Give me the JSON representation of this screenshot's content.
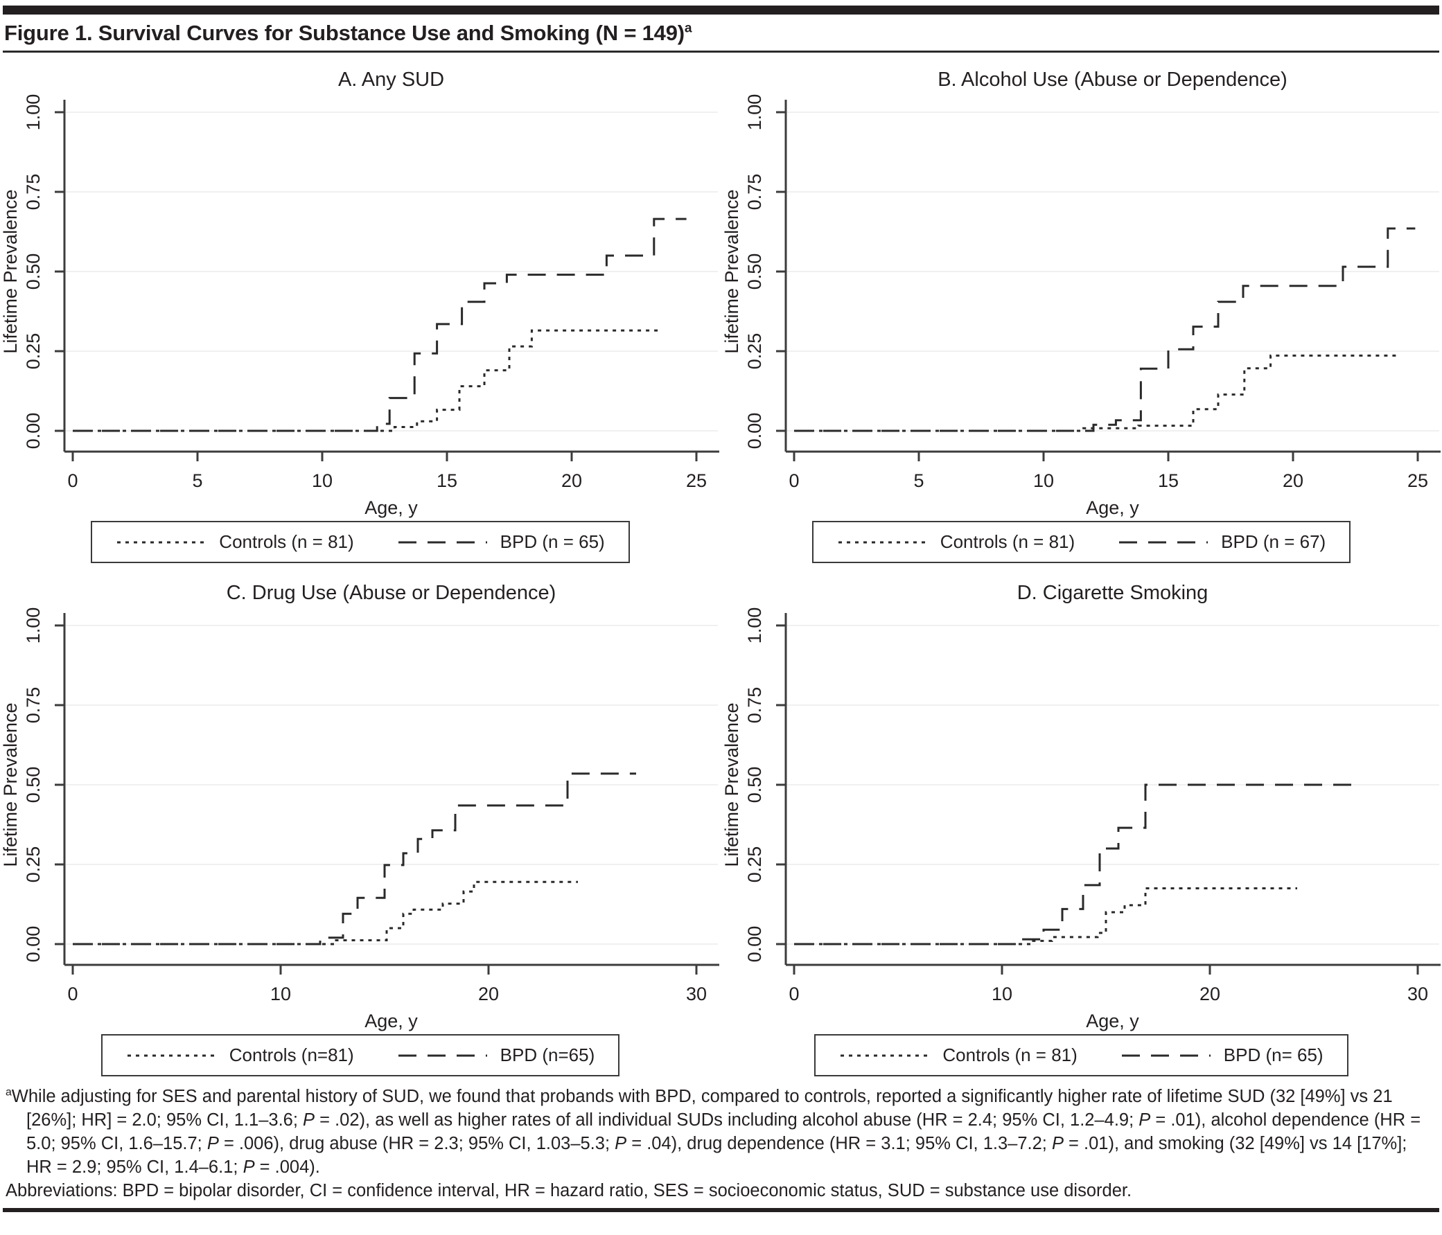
{
  "page": {
    "figure_title": "Figure 1. Survival Curves for Substance Use and Smoking (N = 149)",
    "footnote_marker": "a",
    "footnote_text": "While adjusting for SES and parental history of SUD, we found that probands with BPD, compared to controls, reported a significantly higher rate of lifetime SUD (32 [49%] vs 21 [26%]; HR] = 2.0; 95% CI, 1.1–3.6; P = .02), as well as higher rates of all individual SUDs including alcohol abuse (HR = 2.4; 95% CI, 1.2–4.9; P = .01), alcohol dependence (HR = 5.0; 95% CI, 1.6–15.7; P = .006), drug abuse (HR = 2.3; 95% CI, 1.03–5.3; P = .04), drug dependence (HR = 3.1; 95% CI, 1.3–7.2; P = .01), and smoking (32 [49%] vs 14 [17%]; HR = 2.9; 95% CI, 1.4–6.1; P = .004).",
    "abbreviations": "Abbreviations: BPD = bipolar disorder, CI = confidence interval, HR = hazard ratio, SES = socioeconomic status, SUD = substance use disorder.",
    "colors": {
      "ink": "#231f20",
      "curve": "#2a2a2a",
      "axis": "#3c3c3c",
      "gridline": "#f0f0f0"
    }
  },
  "chart_data": [
    {
      "type": "line",
      "subtype": "kaplan-meier-step",
      "title": "A. Any SUD",
      "xlabel": "Age, y",
      "ylabel": "Lifetime Prevalence",
      "xlim": [
        0,
        25
      ],
      "ylim": [
        0,
        1
      ],
      "xticks": [
        0,
        5,
        10,
        15,
        20,
        25
      ],
      "yticks": [
        0,
        0.25,
        0.5,
        0.75,
        1
      ],
      "ytick_labels": [
        "0.00",
        "0.25",
        "0.50",
        "0.75",
        "1.00"
      ],
      "grid": "horizontal",
      "legend_position": "bottom",
      "series": [
        {
          "name": "Controls (n = 81)",
          "style": "dotted",
          "steps": [
            [
              0,
              0
            ],
            [
              12.9,
              0.012
            ],
            [
              13.8,
              0.03
            ],
            [
              14.6,
              0.066
            ],
            [
              15.5,
              0.14
            ],
            [
              16.5,
              0.19
            ],
            [
              17.5,
              0.265
            ],
            [
              18.4,
              0.315
            ]
          ],
          "end": 23.6
        },
        {
          "name": "BPD (n = 65)",
          "style": "dashed",
          "steps": [
            [
              0,
              0
            ],
            [
              12.2,
              0.022
            ],
            [
              12.7,
              0.103
            ],
            [
              13.7,
              0.243
            ],
            [
              14.6,
              0.335
            ],
            [
              15.6,
              0.405
            ],
            [
              16.5,
              0.463
            ],
            [
              17.4,
              0.49
            ],
            [
              21.4,
              0.55
            ],
            [
              23.3,
              0.665
            ]
          ],
          "end": 24.6
        }
      ]
    },
    {
      "type": "line",
      "subtype": "kaplan-meier-step",
      "title": "B. Alcohol Use (Abuse or Dependence)",
      "xlabel": "Age, y",
      "ylabel": "Lifetime Prevalence",
      "xlim": [
        0,
        25
      ],
      "ylim": [
        0,
        1
      ],
      "xticks": [
        0,
        5,
        10,
        15,
        20,
        25
      ],
      "yticks": [
        0,
        0.25,
        0.5,
        0.75,
        1
      ],
      "ytick_labels": [
        "0.00",
        "0.25",
        "0.50",
        "0.75",
        "1.00"
      ],
      "grid": "horizontal",
      "legend_position": "bottom",
      "series": [
        {
          "name": "Controls (n = 81)",
          "style": "dotted",
          "steps": [
            [
              0,
              0
            ],
            [
              11.6,
              0.008
            ],
            [
              13.8,
              0.016
            ],
            [
              16,
              0.068
            ],
            [
              17,
              0.114
            ],
            [
              18.05,
              0.196
            ],
            [
              19.1,
              0.236
            ]
          ],
          "end": 24.3
        },
        {
          "name": "BPD (n = 67)",
          "style": "dashed",
          "steps": [
            [
              0,
              0
            ],
            [
              12,
              0.019
            ],
            [
              12.9,
              0.033
            ],
            [
              13.9,
              0.195
            ],
            [
              15,
              0.256
            ],
            [
              16,
              0.327
            ],
            [
              17,
              0.405
            ],
            [
              18,
              0.455
            ],
            [
              22,
              0.515
            ],
            [
              23.8,
              0.635
            ]
          ],
          "end": 24.9
        }
      ]
    },
    {
      "type": "line",
      "subtype": "kaplan-meier-step",
      "title": "C. Drug Use (Abuse or Dependence)",
      "xlabel": "Age, y",
      "ylabel": "Lifetime Prevalence",
      "xlim": [
        0,
        30
      ],
      "ylim": [
        0,
        1
      ],
      "xticks": [
        0,
        10,
        20,
        30
      ],
      "yticks": [
        0,
        0.25,
        0.5,
        0.75,
        1
      ],
      "ytick_labels": [
        "0.00",
        "0.25",
        "0.50",
        "0.75",
        "1.00"
      ],
      "grid": "horizontal",
      "legend_position": "bottom",
      "series": [
        {
          "name": "Controls (n=81)",
          "style": "dotted",
          "steps": [
            [
              0,
              0
            ],
            [
              12.6,
              0.012
            ],
            [
              15.1,
              0.05
            ],
            [
              15.9,
              0.095
            ],
            [
              16.4,
              0.108
            ],
            [
              17.8,
              0.127
            ],
            [
              18.8,
              0.165
            ],
            [
              19.3,
              0.195
            ]
          ],
          "end": 24.3
        },
        {
          "name": "BPD (n=65)",
          "style": "dashed",
          "steps": [
            [
              0,
              0
            ],
            [
              11.9,
              0.02
            ],
            [
              13,
              0.095
            ],
            [
              13.7,
              0.145
            ],
            [
              15,
              0.248
            ],
            [
              15.9,
              0.285
            ],
            [
              16.6,
              0.33
            ],
            [
              17.3,
              0.357
            ],
            [
              18.4,
              0.435
            ],
            [
              23.8,
              0.535
            ]
          ],
          "end": 27.1
        }
      ]
    },
    {
      "type": "line",
      "subtype": "kaplan-meier-step",
      "title": "D. Cigarette Smoking",
      "xlabel": "Age, y",
      "ylabel": "Lifetime Prevalence",
      "xlim": [
        0,
        30
      ],
      "ylim": [
        0,
        1
      ],
      "xticks": [
        0,
        10,
        20,
        30
      ],
      "yticks": [
        0,
        0.25,
        0.5,
        0.75,
        1
      ],
      "ytick_labels": [
        "0.00",
        "0.25",
        "0.50",
        "0.75",
        "1.00"
      ],
      "grid": "horizontal",
      "legend_position": "bottom",
      "series": [
        {
          "name": "Controls (n = 81)",
          "style": "dotted",
          "steps": [
            [
              0,
              0
            ],
            [
              11.4,
              0.01
            ],
            [
              12.4,
              0.022
            ],
            [
              14.6,
              0.035
            ],
            [
              15,
              0.1
            ],
            [
              15.9,
              0.122
            ],
            [
              16.9,
              0.175
            ]
          ],
          "end": 24.2
        },
        {
          "name": "BPD (n= 65)",
          "style": "dashed",
          "steps": [
            [
              0,
              0
            ],
            [
              10.9,
              0.015
            ],
            [
              12,
              0.045
            ],
            [
              12.9,
              0.11
            ],
            [
              13.9,
              0.185
            ],
            [
              14.7,
              0.3
            ],
            [
              15.6,
              0.365
            ],
            [
              16.9,
              0.5
            ]
          ],
          "end": 27.2
        }
      ]
    }
  ]
}
